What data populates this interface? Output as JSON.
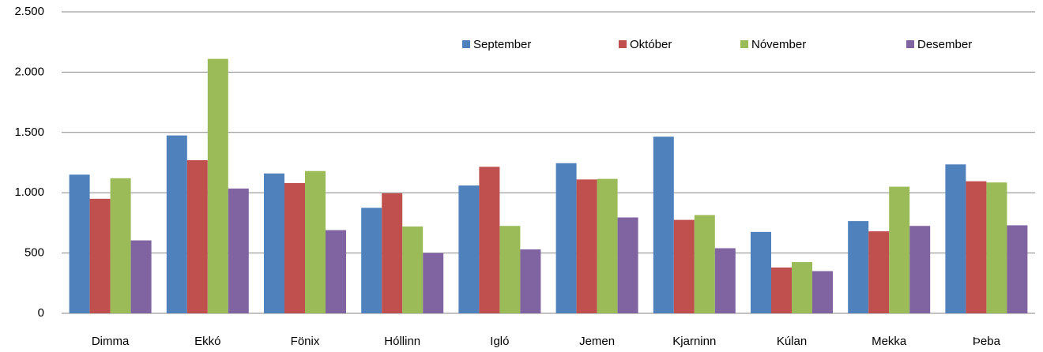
{
  "chart_data": {
    "type": "bar",
    "categories": [
      "Dimma",
      "Ekkó",
      "Fönix",
      "Hóllinn",
      "Igló",
      "Jemen",
      "Kjarninn",
      "Kúlan",
      "Mekka",
      "Þeba"
    ],
    "series": [
      {
        "name": "September",
        "color": "#4f81bd",
        "values": [
          1150,
          1475,
          1160,
          875,
          1060,
          1245,
          1465,
          675,
          765,
          1235
        ]
      },
      {
        "name": "Október",
        "color": "#c0504d",
        "values": [
          950,
          1270,
          1080,
          995,
          1215,
          1110,
          775,
          380,
          680,
          1095
        ]
      },
      {
        "name": "Nóvember",
        "color": "#9bbb59",
        "values": [
          1120,
          2110,
          1180,
          720,
          725,
          1115,
          815,
          425,
          1050,
          1085
        ]
      },
      {
        "name": "Desember",
        "color": "#8064a2",
        "values": [
          605,
          1035,
          690,
          500,
          530,
          795,
          540,
          350,
          725,
          730
        ]
      }
    ],
    "ylim": [
      0,
      2500
    ],
    "yticks": [
      0,
      500,
      {
        "value": 1000,
        "label": "1.000"
      },
      {
        "value": 1500,
        "label": "1.500"
      },
      {
        "value": 2000,
        "label": "2.000"
      },
      {
        "value": 2500,
        "label": "2.500"
      }
    ],
    "grid": true,
    "legend": "top-right"
  }
}
